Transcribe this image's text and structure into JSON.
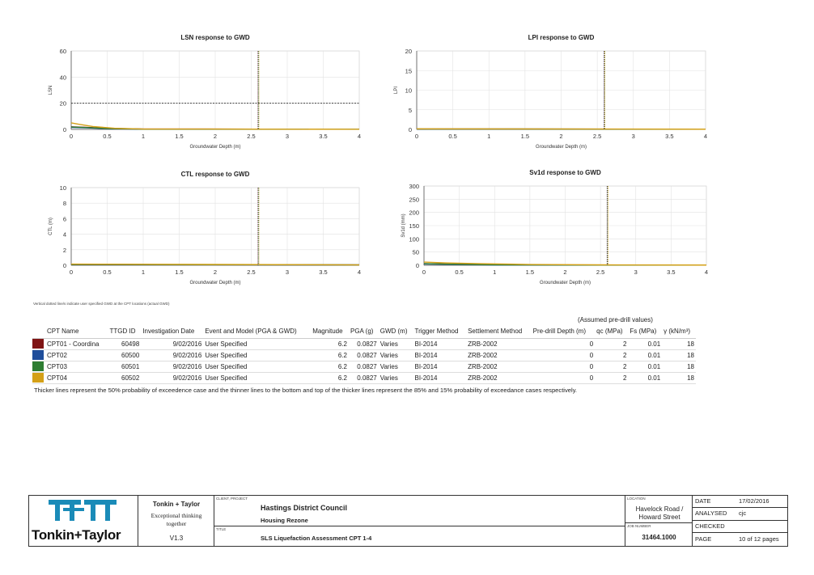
{
  "charts": [
    {
      "type": "line",
      "title": "LSN response to GWD",
      "xlabel": "Groundwater Depth (m)",
      "ylabel": "LSN",
      "xlim": [
        0,
        4
      ],
      "ylim": [
        0,
        60
      ],
      "xticks": [
        "0",
        "0.5",
        "1",
        "1.5",
        "2",
        "2.5",
        "3",
        "3.5",
        "4"
      ],
      "yticks": [
        "0",
        "20",
        "40",
        "60"
      ],
      "threshold": 20,
      "gwd_line": 2.6,
      "series": [
        {
          "color": "#7f1414",
          "x": [
            0,
            0.2,
            0.5,
            1,
            4
          ],
          "y": [
            2,
            1.6,
            0.8,
            0.3,
            0.1
          ]
        },
        {
          "color": "#1f4e9b",
          "x": [
            0,
            0.2,
            0.5,
            1,
            4
          ],
          "y": [
            1.5,
            1.2,
            0.6,
            0.2,
            0.1
          ]
        },
        {
          "color": "#2e7d32",
          "x": [
            0,
            0.2,
            0.5,
            1,
            4
          ],
          "y": [
            1.8,
            1.4,
            0.7,
            0.2,
            0.1
          ]
        },
        {
          "color": "#d4a017",
          "x": [
            0,
            0.1,
            0.3,
            0.6,
            1,
            4
          ],
          "y": [
            5,
            4,
            2.2,
            0.9,
            0.3,
            0.1
          ]
        }
      ]
    },
    {
      "type": "line",
      "title": "LPI response to GWD",
      "xlabel": "Groundwater Depth (m)",
      "ylabel": "LPI",
      "xlim": [
        0,
        4
      ],
      "ylim": [
        0,
        20
      ],
      "xticks": [
        "0",
        "0.5",
        "1",
        "1.5",
        "2",
        "2.5",
        "3",
        "3.5",
        "4"
      ],
      "yticks": [
        "0",
        "5",
        "10",
        "15",
        "20"
      ],
      "gwd_line": 2.6,
      "series": [
        {
          "color": "#7f1414",
          "x": [
            0,
            4
          ],
          "y": [
            0.1,
            0.05
          ]
        },
        {
          "color": "#1f4e9b",
          "x": [
            0,
            4
          ],
          "y": [
            0.1,
            0.05
          ]
        },
        {
          "color": "#2e7d32",
          "x": [
            0,
            4
          ],
          "y": [
            0.1,
            0.05
          ]
        },
        {
          "color": "#d4a017",
          "x": [
            0,
            4
          ],
          "y": [
            0.15,
            0.05
          ]
        }
      ]
    },
    {
      "type": "line",
      "title": "CTL response to GWD",
      "xlabel": "Groundwater Depth (m)",
      "ylabel": "CTL (m)",
      "xlim": [
        0,
        4
      ],
      "ylim": [
        0,
        10
      ],
      "xticks": [
        "0",
        "0.5",
        "1",
        "1.5",
        "2",
        "2.5",
        "3",
        "3.5",
        "4"
      ],
      "yticks": [
        "0",
        "2",
        "4",
        "6",
        "8",
        "10"
      ],
      "gwd_line": 2.6,
      "series": [
        {
          "color": "#7f1414",
          "x": [
            0,
            4
          ],
          "y": [
            0.1,
            0.05
          ]
        },
        {
          "color": "#1f4e9b",
          "x": [
            0,
            4
          ],
          "y": [
            0.1,
            0.05
          ]
        },
        {
          "color": "#2e7d32",
          "x": [
            0,
            4
          ],
          "y": [
            0.1,
            0.05
          ]
        },
        {
          "color": "#d4a017",
          "x": [
            0,
            4
          ],
          "y": [
            0.15,
            0.05
          ]
        }
      ]
    },
    {
      "type": "line",
      "title": "Sv1d response to GWD",
      "xlabel": "Groundwater Depth (m)",
      "ylabel": "Sv1d (mm)",
      "xlim": [
        0,
        4
      ],
      "ylim": [
        0,
        300
      ],
      "xticks": [
        "0",
        "0.5",
        "1",
        "1.5",
        "2",
        "2.5",
        "3",
        "3.5",
        "4"
      ],
      "yticks": [
        "0",
        "50",
        "100",
        "150",
        "200",
        "250",
        "300"
      ],
      "gwd_line": 2.6,
      "series": [
        {
          "color": "#7f1414",
          "x": [
            0,
            0.5,
            1,
            2,
            4
          ],
          "y": [
            6,
            4,
            2,
            1,
            0.5
          ]
        },
        {
          "color": "#1f4e9b",
          "x": [
            0,
            0.5,
            1,
            2,
            4
          ],
          "y": [
            5,
            3,
            1.5,
            0.8,
            0.5
          ]
        },
        {
          "color": "#2e7d32",
          "x": [
            0,
            0.5,
            1,
            2,
            4
          ],
          "y": [
            6,
            3.5,
            1.8,
            0.9,
            0.5
          ]
        },
        {
          "color": "#d4a017",
          "x": [
            0,
            0.3,
            0.8,
            1.5,
            2.5,
            4
          ],
          "y": [
            12,
            9,
            6,
            3,
            1.5,
            0.8
          ]
        }
      ]
    }
  ],
  "note": "Vertical dotted line/s indicate user specified GWD at the CPT locations (actual GWD)",
  "table": {
    "assumed": "(Assumed pre-drill values)",
    "headers": [
      "CPT Name",
      "TTGD ID",
      "Investigation Date",
      "Event and Model (PGA & GWD)",
      "Magnitude",
      "PGA (g)",
      "GWD (m)",
      "Trigger Method",
      "Settlement Method",
      "Pre-drill Depth (m)",
      "qc (MPa)",
      "Fs (MPa)",
      "γ (kN/m³)"
    ],
    "rows": [
      {
        "color": "#7f1414",
        "name": "CPT01 - Coordina",
        "id": "60498",
        "date": "9/02/2016",
        "event": "User Specified",
        "mag": "6.2",
        "pga": "0.0827",
        "gwd": "Varies",
        "trigger": "BI-2014",
        "settle": "ZRB-2002",
        "predrill": "0",
        "qc": "2",
        "fs": "0.01",
        "gamma": "18"
      },
      {
        "color": "#1f4e9b",
        "name": "CPT02",
        "id": "60500",
        "date": "9/02/2016",
        "event": "User Specified",
        "mag": "6.2",
        "pga": "0.0827",
        "gwd": "Varies",
        "trigger": "BI-2014",
        "settle": "ZRB-2002",
        "predrill": "0",
        "qc": "2",
        "fs": "0.01",
        "gamma": "18"
      },
      {
        "color": "#2e7d32",
        "name": "CPT03",
        "id": "60501",
        "date": "9/02/2016",
        "event": "User Specified",
        "mag": "6.2",
        "pga": "0.0827",
        "gwd": "Varies",
        "trigger": "BI-2014",
        "settle": "ZRB-2002",
        "predrill": "0",
        "qc": "2",
        "fs": "0.01",
        "gamma": "18"
      },
      {
        "color": "#d4a017",
        "name": "CPT04",
        "id": "60502",
        "date": "9/02/2016",
        "event": "User Specified",
        "mag": "6.2",
        "pga": "0.0827",
        "gwd": "Varies",
        "trigger": "BI-2014",
        "settle": "ZRB-2002",
        "predrill": "0",
        "qc": "2",
        "fs": "0.01",
        "gamma": "18"
      }
    ],
    "footnote": "Thicker lines represent the 50% probability of exceedence case and the thinner lines to the bottom and top of the thicker lines represent the 85% and 15% probability of exceedance cases respectively."
  },
  "titleblock": {
    "logo_text": "Tonkin+Taylor",
    "company": "Tonkin + Taylor",
    "tagline": "Exceptional thinking together",
    "version": "V1.3",
    "client_label": "CLIENT, PROJECT",
    "client": "Hastings District Council",
    "project": "Housing Rezone",
    "title_label": "TITLE",
    "title": "SLS Liquefaction Assessment CPT 1-4",
    "location_label": "LOCATION",
    "location": "Havelock Road / Howard Street",
    "job_label": "JOB NUMBER",
    "job": "31464.1000",
    "date_label": "DATE",
    "date": "17/02/2016",
    "analysed_label": "ANALYSED",
    "analysed": "cjc",
    "checked_label": "CHECKED",
    "checked": "",
    "page_label": "PAGE",
    "page": "10 of 12 pages",
    "brand_color": "#1a8bb8"
  }
}
